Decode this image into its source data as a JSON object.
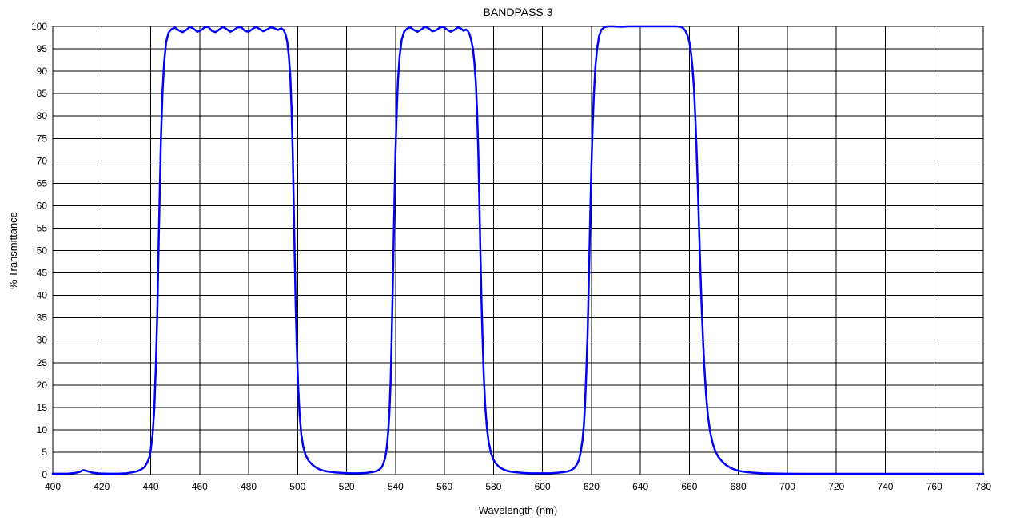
{
  "chart_data": {
    "type": "line",
    "title": "BANDPASS 3",
    "xlabel": "Wavelength (nm)",
    "ylabel": "% Transmittance",
    "xlim": [
      400,
      780
    ],
    "ylim": [
      0,
      100
    ],
    "x_ticks": [
      400,
      420,
      440,
      460,
      480,
      500,
      520,
      540,
      560,
      580,
      600,
      620,
      640,
      660,
      680,
      700,
      720,
      740,
      760,
      780
    ],
    "y_ticks": [
      0,
      5,
      10,
      15,
      20,
      25,
      30,
      35,
      40,
      45,
      50,
      55,
      60,
      65,
      70,
      75,
      80,
      85,
      90,
      95,
      100
    ],
    "grid": true,
    "legend_position": "none",
    "colors": {
      "curve": "#0000FF",
      "grid": "#000000",
      "frame": "#000000",
      "text": "#000000",
      "background": "#FFFFFF"
    },
    "series": [
      {
        "name": "transmittance",
        "points": [
          [
            400,
            0.2
          ],
          [
            403,
            0.2
          ],
          [
            406,
            0.2
          ],
          [
            409,
            0.35
          ],
          [
            411,
            0.6
          ],
          [
            412.5,
            1.0
          ],
          [
            414,
            0.8
          ],
          [
            416,
            0.45
          ],
          [
            419,
            0.25
          ],
          [
            423,
            0.2
          ],
          [
            427,
            0.2
          ],
          [
            430,
            0.3
          ],
          [
            432.5,
            0.5
          ],
          [
            434.5,
            0.75
          ],
          [
            436,
            1.1
          ],
          [
            437.5,
            1.7
          ],
          [
            438.7,
            2.8
          ],
          [
            439.5,
            4
          ],
          [
            440,
            5.5
          ],
          [
            440.8,
            9
          ],
          [
            441.5,
            15
          ],
          [
            442.1,
            24
          ],
          [
            442.7,
            36
          ],
          [
            443.2,
            50
          ],
          [
            443.7,
            63
          ],
          [
            444.2,
            75
          ],
          [
            444.8,
            85
          ],
          [
            445.5,
            92
          ],
          [
            446.3,
            96.5
          ],
          [
            447.3,
            98.6
          ],
          [
            448.5,
            99.4
          ],
          [
            450,
            99.7
          ],
          [
            451.5,
            99.1
          ],
          [
            453,
            98.7
          ],
          [
            454.5,
            99.2
          ],
          [
            456,
            99.9
          ],
          [
            457.5,
            99.5
          ],
          [
            459,
            98.8
          ],
          [
            460.5,
            99.1
          ],
          [
            462,
            99.8
          ],
          [
            463.5,
            99.9
          ],
          [
            465,
            99.0
          ],
          [
            466.5,
            98.7
          ],
          [
            468,
            99.3
          ],
          [
            469.5,
            99.9
          ],
          [
            471,
            99.4
          ],
          [
            472.5,
            98.8
          ],
          [
            474,
            99.2
          ],
          [
            475.5,
            99.8
          ],
          [
            477,
            99.8
          ],
          [
            478.5,
            99.0
          ],
          [
            480,
            98.8
          ],
          [
            481.5,
            99.4
          ],
          [
            483,
            99.9
          ],
          [
            484.5,
            99.4
          ],
          [
            486,
            98.9
          ],
          [
            487.5,
            99.3
          ],
          [
            489,
            99.8
          ],
          [
            490.5,
            99.6
          ],
          [
            492,
            99.2
          ],
          [
            493.3,
            99.6
          ],
          [
            494.3,
            99.2
          ],
          [
            495.1,
            98.2
          ],
          [
            495.8,
            96.5
          ],
          [
            496.4,
            93.5
          ],
          [
            497,
            89
          ],
          [
            497.5,
            82
          ],
          [
            498,
            72
          ],
          [
            498.4,
            61
          ],
          [
            498.8,
            49
          ],
          [
            499.2,
            38
          ],
          [
            499.7,
            28
          ],
          [
            500.2,
            20
          ],
          [
            500.8,
            13.5
          ],
          [
            501.5,
            9
          ],
          [
            502.3,
            6.2
          ],
          [
            503.3,
            4.3
          ],
          [
            504.5,
            3.1
          ],
          [
            506,
            2.2
          ],
          [
            507.5,
            1.6
          ],
          [
            509,
            1.15
          ],
          [
            511,
            0.8
          ],
          [
            513.5,
            0.6
          ],
          [
            516,
            0.45
          ],
          [
            519,
            0.35
          ],
          [
            522,
            0.3
          ],
          [
            525,
            0.3
          ],
          [
            528,
            0.38
          ],
          [
            530.5,
            0.55
          ],
          [
            532,
            0.75
          ],
          [
            533.2,
            1.05
          ],
          [
            534.2,
            1.55
          ],
          [
            535,
            2.4
          ],
          [
            535.8,
            3.8
          ],
          [
            536.4,
            6
          ],
          [
            537,
            9.5
          ],
          [
            537.5,
            14
          ],
          [
            538,
            21
          ],
          [
            538.4,
            30
          ],
          [
            538.8,
            40
          ],
          [
            539.2,
            51
          ],
          [
            539.6,
            62
          ],
          [
            540,
            72
          ],
          [
            540.5,
            81
          ],
          [
            541,
            88
          ],
          [
            541.7,
            93.5
          ],
          [
            542.5,
            97
          ],
          [
            543.5,
            98.8
          ],
          [
            544.7,
            99.5
          ],
          [
            546,
            99.8
          ],
          [
            547.5,
            99.2
          ],
          [
            549,
            98.8
          ],
          [
            550.5,
            99.3
          ],
          [
            552,
            99.9
          ],
          [
            553.5,
            99.6
          ],
          [
            555,
            98.9
          ],
          [
            556.5,
            99.1
          ],
          [
            558,
            99.7
          ],
          [
            559.5,
            99.9
          ],
          [
            561,
            99.3
          ],
          [
            562.5,
            98.8
          ],
          [
            564,
            99.2
          ],
          [
            565.5,
            99.8
          ],
          [
            566.8,
            99.5
          ],
          [
            567.8,
            99.0
          ],
          [
            568.7,
            99.3
          ],
          [
            569.5,
            99.0
          ],
          [
            570.2,
            98.3
          ],
          [
            570.9,
            97
          ],
          [
            571.6,
            95
          ],
          [
            572.2,
            92
          ],
          [
            572.8,
            87.5
          ],
          [
            573.3,
            81
          ],
          [
            573.8,
            72
          ],
          [
            574.2,
            62
          ],
          [
            574.6,
            51
          ],
          [
            575,
            41
          ],
          [
            575.5,
            31
          ],
          [
            576,
            22.5
          ],
          [
            576.6,
            15.5
          ],
          [
            577.3,
            10.5
          ],
          [
            578.1,
            7
          ],
          [
            579,
            4.8
          ],
          [
            580,
            3.3
          ],
          [
            581.2,
            2.3
          ],
          [
            582.6,
            1.6
          ],
          [
            584.2,
            1.1
          ],
          [
            586,
            0.75
          ],
          [
            588.5,
            0.55
          ],
          [
            591.5,
            0.4
          ],
          [
            595,
            0.3
          ],
          [
            599,
            0.28
          ],
          [
            603,
            0.3
          ],
          [
            606,
            0.4
          ],
          [
            608.5,
            0.55
          ],
          [
            610.3,
            0.72
          ],
          [
            611.8,
            1.0
          ],
          [
            613,
            1.5
          ],
          [
            614,
            2.2
          ],
          [
            614.9,
            3.3
          ],
          [
            615.6,
            5
          ],
          [
            616.3,
            7.5
          ],
          [
            616.9,
            11
          ],
          [
            617.4,
            16
          ],
          [
            617.9,
            23
          ],
          [
            618.4,
            31
          ],
          [
            618.8,
            40
          ],
          [
            619.2,
            50
          ],
          [
            619.6,
            60
          ],
          [
            620,
            69
          ],
          [
            620.5,
            78
          ],
          [
            621,
            85
          ],
          [
            621.6,
            91
          ],
          [
            622.3,
            95
          ],
          [
            623.1,
            97.8
          ],
          [
            624,
            99.2
          ],
          [
            625.2,
            99.8
          ],
          [
            626.5,
            100
          ],
          [
            629,
            100
          ],
          [
            632,
            99.9
          ],
          [
            635,
            100
          ],
          [
            639,
            100
          ],
          [
            643,
            100
          ],
          [
            647,
            100
          ],
          [
            651,
            100
          ],
          [
            654.5,
            100
          ],
          [
            656.5,
            99.9
          ],
          [
            657.5,
            99.6
          ],
          [
            658.4,
            99
          ],
          [
            659.2,
            98
          ],
          [
            660,
            96.5
          ],
          [
            660.7,
            94
          ],
          [
            661.3,
            90.5
          ],
          [
            661.9,
            86
          ],
          [
            662.4,
            80
          ],
          [
            662.9,
            73
          ],
          [
            663.4,
            65
          ],
          [
            663.9,
            56
          ],
          [
            664.4,
            47
          ],
          [
            664.9,
            39
          ],
          [
            665.5,
            31
          ],
          [
            666.1,
            24
          ],
          [
            666.8,
            18
          ],
          [
            667.6,
            13
          ],
          [
            668.5,
            9.5
          ],
          [
            669.5,
            7
          ],
          [
            670.6,
            5.2
          ],
          [
            671.9,
            3.9
          ],
          [
            673.4,
            2.9
          ],
          [
            675,
            2.1
          ],
          [
            676.8,
            1.5
          ],
          [
            678.8,
            1.05
          ],
          [
            681,
            0.75
          ],
          [
            683.5,
            0.55
          ],
          [
            686.5,
            0.4
          ],
          [
            690,
            0.3
          ],
          [
            694,
            0.25
          ],
          [
            700,
            0.2
          ],
          [
            708,
            0.18
          ],
          [
            718,
            0.18
          ],
          [
            730,
            0.18
          ],
          [
            745,
            0.18
          ],
          [
            760,
            0.18
          ],
          [
            780,
            0.18
          ]
        ]
      }
    ]
  }
}
